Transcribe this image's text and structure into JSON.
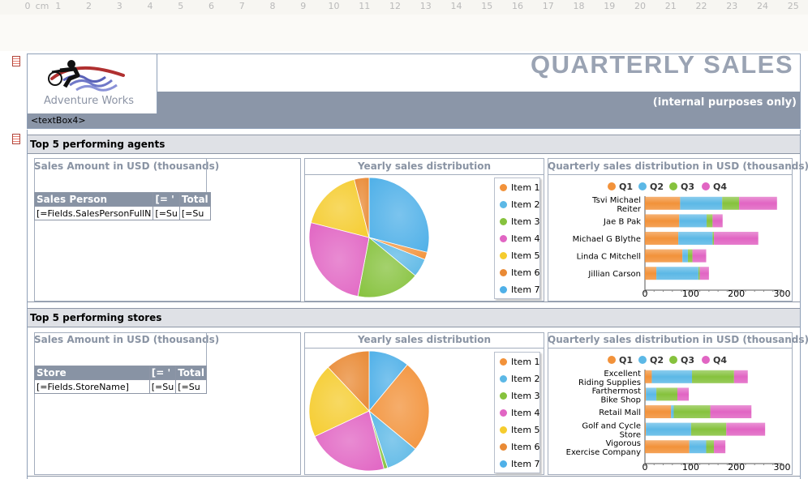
{
  "ruler": {
    "unit": "cm",
    "zero_label": "0",
    "ticks": [
      "1",
      "2",
      "3",
      "4",
      "5",
      "6",
      "7",
      "8",
      "9",
      "10",
      "11",
      "12",
      "13",
      "14",
      "15",
      "16",
      "17",
      "18",
      "19",
      "20",
      "21",
      "22",
      "23",
      "24",
      "25"
    ]
  },
  "header": {
    "logo_text": "Adventure Works",
    "title": "QUARTERLY SALES",
    "subtitle": "(internal purposes only)",
    "textbox_placeholder": "<textBox4>"
  },
  "colors": {
    "item_colors": [
      "#f2923a",
      "#5cb8e6",
      "#86c23d",
      "#e165c3",
      "#f5cc2e",
      "#e98a35",
      "#4fb0e8"
    ],
    "quarter_colors": [
      "#f2923a",
      "#5cb8e6",
      "#86c23d",
      "#e165c3"
    ]
  },
  "sections": [
    {
      "heading": "Top 5 performing agents",
      "table": {
        "title": "Sales Amount in USD (thousands)",
        "headers": [
          "Sales Person",
          "[= '",
          "Total"
        ],
        "row": [
          "[=Fields.SalesPersonFullN",
          "[=Su",
          "[=Su"
        ]
      },
      "pie": {
        "title": "Yearly sales distribution",
        "legend": [
          "Item 1",
          "Item 2",
          "Item 3",
          "Item 4",
          "Item 5",
          "Item 6",
          "Item 7"
        ]
      },
      "bar": {
        "title": "Quarterly sales distribution in USD (thousands)",
        "legend": [
          "Q1",
          "Q2",
          "Q3",
          "Q4"
        ]
      }
    },
    {
      "heading": "Top 5 performing stores",
      "table": {
        "title": "Sales Amount in USD (thousands)",
        "headers": [
          "Store",
          "[= '",
          "Total"
        ],
        "row": [
          "[=Fields.StoreName]",
          "[=Su",
          "[=Su"
        ]
      },
      "pie": {
        "title": "Yearly sales distribution",
        "legend": [
          "Item 1",
          "Item 2",
          "Item 3",
          "Item 4",
          "Item 5",
          "Item 6",
          "Item 7"
        ]
      },
      "bar": {
        "title": "Quarterly sales distribution in USD (thousands)",
        "legend": [
          "Q1",
          "Q2",
          "Q3",
          "Q4"
        ]
      }
    }
  ],
  "chart_data": [
    {
      "type": "pie",
      "title": "Yearly sales distribution",
      "categories": [
        "Item 1",
        "Item 2",
        "Item 3",
        "Item 4",
        "Item 5",
        "Item 6",
        "Item 7"
      ],
      "values": [
        2,
        5,
        17,
        26,
        17,
        4,
        29
      ]
    },
    {
      "type": "bar",
      "orientation": "horizontal",
      "stacked": true,
      "title": "Quarterly sales distribution in USD (thousands)",
      "categories": [
        "Tsvi Michael Reiter",
        "Jae B Pak",
        "Michael G Blythe",
        "Linda C Mitchell",
        "Jillian  Carson"
      ],
      "series": [
        {
          "name": "Q1",
          "values": [
            77,
            75,
            73,
            82,
            25
          ]
        },
        {
          "name": "Q2",
          "values": [
            92,
            60,
            75,
            12,
            92
          ]
        },
        {
          "name": "Q3",
          "values": [
            37,
            13,
            3,
            10,
            3
          ]
        },
        {
          "name": "Q4",
          "values": [
            83,
            22,
            97,
            30,
            20
          ]
        }
      ],
      "x_ticks": [
        0,
        100,
        200,
        300
      ],
      "xlim": [
        0,
        300
      ]
    },
    {
      "type": "pie",
      "title": "Yearly sales distribution",
      "categories": [
        "Item 1",
        "Item 2",
        "Item 3",
        "Item 4",
        "Item 5",
        "Item 6",
        "Item 7"
      ],
      "values": [
        25,
        9,
        1,
        22,
        20,
        12,
        11
      ]
    },
    {
      "type": "bar",
      "orientation": "horizontal",
      "stacked": true,
      "title": "Quarterly sales distribution in USD (thousands)",
      "categories": [
        "Excellent Riding Supplies",
        "Farthermost Bike Shop",
        "Retail Mall",
        "Golf and Cycle Store",
        "Vigorous Exercise Company"
      ],
      "series": [
        {
          "name": "Q1",
          "values": [
            15,
            2,
            57,
            2,
            97
          ]
        },
        {
          "name": "Q2",
          "values": [
            88,
            23,
            6,
            99,
            37
          ]
        },
        {
          "name": "Q3",
          "values": [
            92,
            46,
            80,
            77,
            17
          ]
        },
        {
          "name": "Q4",
          "values": [
            30,
            25,
            90,
            85,
            25
          ]
        }
      ],
      "x_ticks": [
        0,
        100,
        200,
        300
      ],
      "xlim": [
        0,
        300
      ]
    }
  ]
}
